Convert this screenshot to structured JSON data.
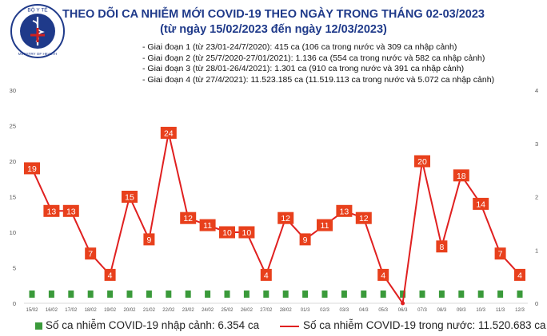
{
  "header": {
    "title": "THEO DÕI CA NHIỄM MỚI COVID-19 THEO NGÀY TRONG THÁNG 02-03/2023",
    "subtitle": "(từ ngày 15/02/2023 đến ngày 12/03/2023)",
    "logo_text_top": "BỘ Y TẾ",
    "logo_text_bottom": "MINISTRY OF HEALTH"
  },
  "notes": [
    "- Giai đoạn 1 (từ 23/01-24/7/2020): 415 ca (106 ca trong nước và 309 ca nhập cảnh)",
    "- Giai đoạn 2 (từ 25/7/2020-27/01/2021): 1.136 ca (554 ca trong nước và 582 ca nhập cảnh)",
    "- Giai đoạn 3 (từ 28/01-26/4/2021): 1.301 ca (910 ca trong nước và 391 ca nhập cảnh)",
    "- Giai đoạn 4 (từ 27/4/2021): 11.523.185 ca (11.519.113 ca trong nước và 5.072 ca nhập cảnh)"
  ],
  "legend": {
    "imported": "Số ca nhiễm COVID-19 nhập cảnh: 6.354 ca",
    "domestic": "Số ca nhiễm COVID-19 trong nước: 11.520.683 ca"
  },
  "colors": {
    "line": "#e02020",
    "label_bg": "#e8401c",
    "bar": "#3a9a3a",
    "title": "#1f3a8a"
  },
  "chart_data": {
    "type": "line",
    "categories": [
      "15/02",
      "16/02",
      "17/02",
      "18/02",
      "19/02",
      "20/02",
      "21/02",
      "22/02",
      "23/02",
      "24/02",
      "25/02",
      "26/02",
      "27/02",
      "28/02",
      "01/3",
      "02/3",
      "03/3",
      "04/3",
      "05/3",
      "06/3",
      "07/3",
      "08/3",
      "09/3",
      "10/3",
      "11/3",
      "12/3"
    ],
    "series": [
      {
        "name": "Số ca nhiễm COVID-19 trong nước",
        "axis": "left",
        "values": [
          19,
          13,
          13,
          7,
          4,
          15,
          9,
          24,
          12,
          11,
          10,
          10,
          4,
          12,
          9,
          11,
          13,
          12,
          4,
          0,
          20,
          8,
          18,
          14,
          7,
          4
        ]
      },
      {
        "name": "Số ca nhiễm COVID-19 nhập cảnh",
        "axis": "right",
        "values": [
          0,
          0,
          0,
          0,
          0,
          0,
          0,
          0,
          0,
          0,
          0,
          0,
          0,
          0,
          0,
          0,
          0,
          0,
          0,
          0,
          0,
          0,
          0,
          0,
          0,
          0
        ]
      }
    ],
    "y_left": {
      "min": 0,
      "max": 30,
      "ticks": [
        0,
        5,
        10,
        15,
        20,
        25,
        30
      ]
    },
    "y_right": {
      "min": 0,
      "max": 4,
      "ticks": [
        0,
        1,
        2,
        3,
        4
      ]
    }
  }
}
